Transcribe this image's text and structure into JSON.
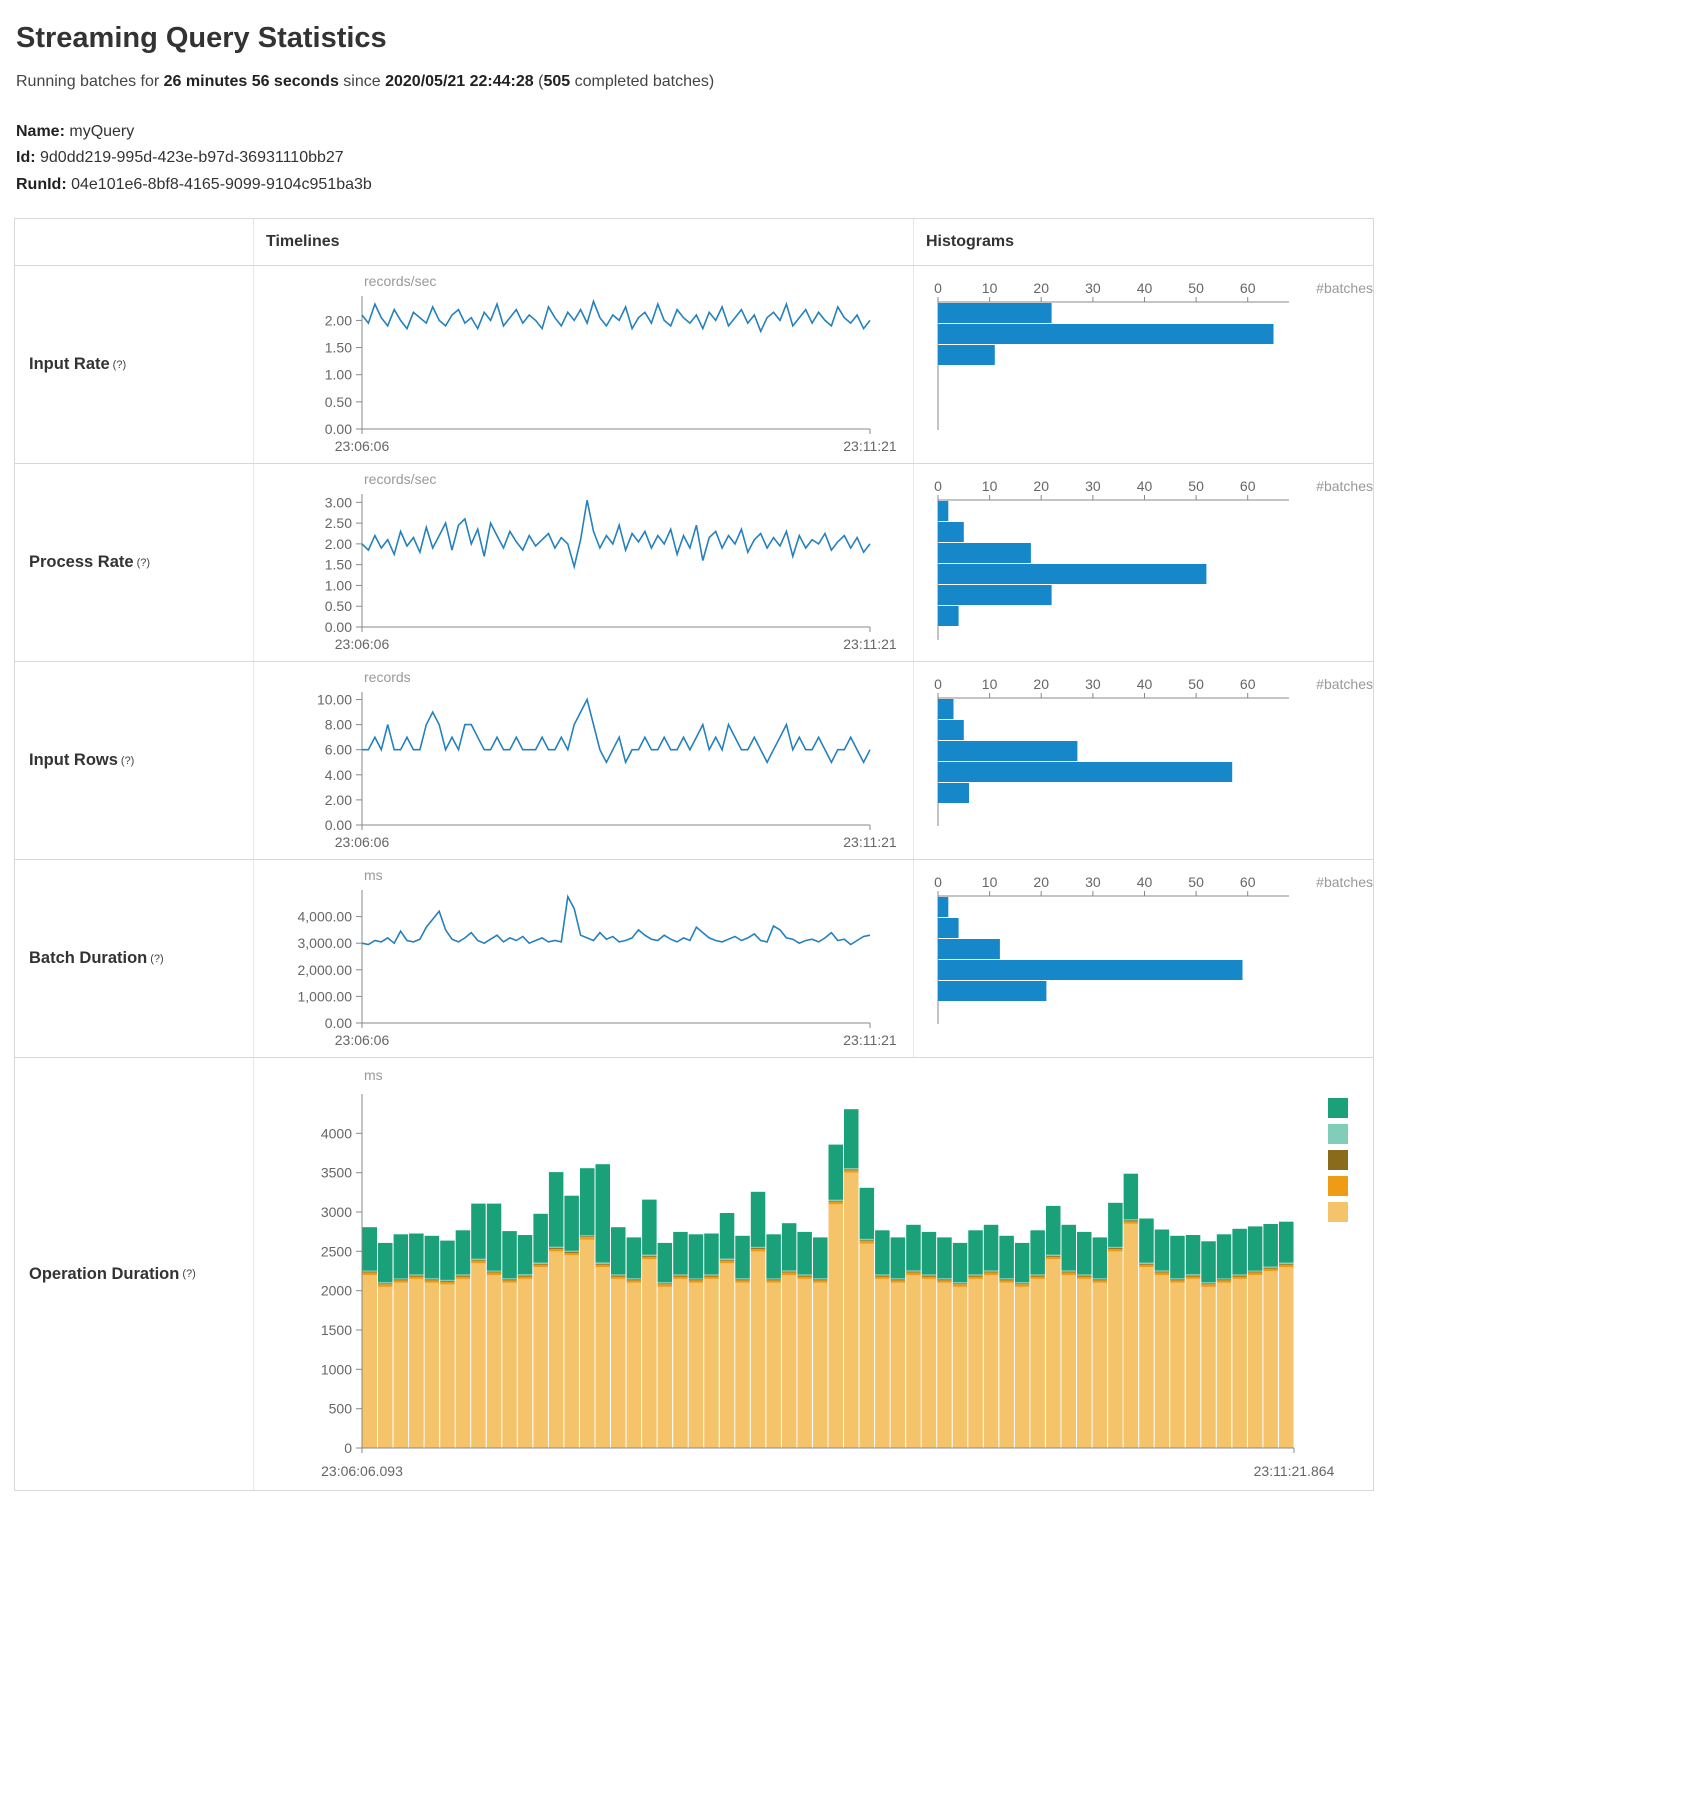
{
  "header": {
    "title": "Streaming Query Statistics",
    "running_prefix": "Running batches for",
    "duration": "26 minutes 56 seconds",
    "since_word": "since",
    "start_time": "2020/05/21 22:44:28",
    "open_paren": "(",
    "completed_count": "505",
    "completed_suffix": " completed batches)"
  },
  "query": {
    "name_label": "Name:",
    "name": "myQuery",
    "id_label": "Id:",
    "id": "9d0dd219-995d-423e-b97d-36931110bb27",
    "runid_label": "RunId:",
    "runid": "04e101e6-8bf8-4165-9099-9104c951ba3b"
  },
  "table": {
    "col_timelines": "Timelines",
    "col_histograms": "Histograms",
    "rows": [
      {
        "label": "Input Rate",
        "help": "(?)"
      },
      {
        "label": "Process Rate",
        "help": "(?)"
      },
      {
        "label": "Input Rows",
        "help": "(?)"
      },
      {
        "label": "Batch Duration",
        "help": "(?)"
      },
      {
        "label": "Operation Duration",
        "help": "(?)"
      }
    ]
  },
  "chart_data": [
    {
      "slot": "input-rate-timeline",
      "type": "line",
      "title": "Input Rate timeline",
      "unit": "records/sec",
      "color": "#2581bd",
      "x_start": "23:06:06",
      "x_end": "23:11:21",
      "ylim": [
        0,
        2.45
      ],
      "ytick_values": [
        0,
        0.5,
        1,
        1.5,
        2
      ],
      "ytick_labels": [
        "0.00",
        "0.50",
        "1.00",
        "1.50",
        "2.00"
      ],
      "values": [
        2.1,
        1.95,
        2.3,
        2.05,
        1.9,
        2.2,
        2.0,
        1.85,
        2.15,
        2.05,
        1.95,
        2.25,
        2.0,
        1.9,
        2.1,
        2.2,
        1.95,
        2.05,
        1.85,
        2.15,
        2.0,
        2.3,
        1.9,
        2.05,
        2.2,
        1.95,
        2.1,
        2.0,
        1.85,
        2.25,
        2.05,
        1.9,
        2.15,
        2.0,
        2.2,
        1.95,
        2.35,
        2.05,
        1.9,
        2.1,
        2.0,
        2.25,
        1.85,
        2.05,
        2.15,
        1.95,
        2.3,
        2.0,
        1.9,
        2.2,
        2.05,
        1.95,
        2.1,
        1.85,
        2.15,
        2.0,
        2.25,
        1.9,
        2.05,
        2.2,
        1.95,
        2.1,
        1.8,
        2.05,
        2.15,
        2.0,
        2.3,
        1.9,
        2.05,
        2.2,
        1.95,
        2.15,
        2.0,
        1.9,
        2.25,
        2.05,
        1.95,
        2.1,
        1.85,
        2.0
      ]
    },
    {
      "slot": "input-rate-histogram",
      "type": "hbar",
      "title": "Input Rate histogram",
      "xlabel": "#batches",
      "color": "#1687c9",
      "xlim": [
        0,
        68
      ],
      "xticks": [
        0,
        10,
        20,
        30,
        40,
        50,
        60
      ],
      "values": [
        22,
        65,
        11
      ]
    },
    {
      "slot": "process-rate-timeline",
      "type": "line",
      "title": "Process Rate timeline",
      "unit": "records/sec",
      "color": "#2581bd",
      "x_start": "23:06:06",
      "x_end": "23:11:21",
      "ylim": [
        0,
        3.2
      ],
      "ytick_values": [
        0,
        0.5,
        1,
        1.5,
        2,
        2.5,
        3
      ],
      "ytick_labels": [
        "0.00",
        "0.50",
        "1.00",
        "1.50",
        "2.00",
        "2.50",
        "3.00"
      ],
      "values": [
        2.0,
        1.85,
        2.2,
        1.9,
        2.1,
        1.75,
        2.3,
        1.95,
        2.15,
        1.8,
        2.4,
        1.9,
        2.2,
        2.5,
        1.85,
        2.45,
        2.6,
        2.0,
        2.35,
        1.7,
        2.5,
        2.2,
        1.9,
        2.3,
        2.05,
        1.85,
        2.2,
        1.95,
        2.1,
        2.25,
        1.9,
        2.15,
        2.0,
        1.45,
        2.1,
        3.05,
        2.3,
        1.9,
        2.2,
        2.0,
        2.45,
        1.85,
        2.25,
        2.05,
        2.3,
        1.9,
        2.2,
        2.0,
        2.35,
        1.75,
        2.2,
        1.9,
        2.45,
        1.6,
        2.15,
        2.3,
        1.9,
        2.2,
        2.0,
        2.35,
        1.8,
        2.1,
        2.25,
        1.9,
        2.15,
        1.95,
        2.3,
        1.7,
        2.2,
        1.9,
        2.1,
        2.0,
        2.25,
        1.85,
        2.05,
        2.2,
        1.9,
        2.15,
        1.8,
        2.0
      ]
    },
    {
      "slot": "process-rate-histogram",
      "type": "hbar",
      "title": "Process Rate histogram",
      "xlabel": "#batches",
      "color": "#1687c9",
      "xlim": [
        0,
        68
      ],
      "xticks": [
        0,
        10,
        20,
        30,
        40,
        50,
        60
      ],
      "values": [
        2,
        5,
        18,
        52,
        22,
        4
      ]
    },
    {
      "slot": "input-rows-timeline",
      "type": "line",
      "title": "Input Rows timeline",
      "unit": "records",
      "color": "#2581bd",
      "x_start": "23:06:06",
      "x_end": "23:11:21",
      "ylim": [
        0,
        10.6
      ],
      "ytick_values": [
        0,
        2,
        4,
        6,
        8,
        10
      ],
      "ytick_labels": [
        "0.00",
        "2.00",
        "4.00",
        "6.00",
        "8.00",
        "10.00"
      ],
      "values": [
        6,
        6,
        7,
        6,
        8,
        6,
        6,
        7,
        6,
        6,
        8,
        9,
        8,
        6,
        7,
        6,
        8,
        8,
        7,
        6,
        6,
        7,
        6,
        6,
        7,
        6,
        6,
        6,
        7,
        6,
        6,
        7,
        6,
        8,
        9,
        10,
        8,
        6,
        5,
        6,
        7,
        5,
        6,
        6,
        7,
        6,
        6,
        7,
        6,
        6,
        7,
        6,
        7,
        8,
        6,
        7,
        6,
        8,
        7,
        6,
        6,
        7,
        6,
        5,
        6,
        7,
        8,
        6,
        7,
        6,
        6,
        7,
        6,
        5,
        6,
        6,
        7,
        6,
        5,
        6
      ]
    },
    {
      "slot": "input-rows-histogram",
      "type": "hbar",
      "title": "Input Rows histogram",
      "xlabel": "#batches",
      "color": "#1687c9",
      "xlim": [
        0,
        68
      ],
      "xticks": [
        0,
        10,
        20,
        30,
        40,
        50,
        60
      ],
      "values": [
        3,
        5,
        27,
        57,
        6
      ]
    },
    {
      "slot": "batch-duration-timeline",
      "type": "line",
      "title": "Batch Duration timeline",
      "unit": "ms",
      "color": "#2581bd",
      "x_start": "23:06:06",
      "x_end": "23:11:21",
      "ylim": [
        0,
        5000
      ],
      "ytick_values": [
        0,
        1000,
        2000,
        3000,
        4000
      ],
      "ytick_labels": [
        "0.00",
        "1,000.00",
        "2,000.00",
        "3,000.00",
        "4,000.00"
      ],
      "values": [
        3000,
        2950,
        3100,
        3050,
        3200,
        3000,
        3450,
        3100,
        3050,
        3150,
        3600,
        3900,
        4200,
        3500,
        3150,
        3050,
        3200,
        3400,
        3100,
        3000,
        3150,
        3300,
        3050,
        3200,
        3100,
        3250,
        3000,
        3100,
        3200,
        3050,
        3100,
        3050,
        4750,
        4300,
        3300,
        3200,
        3100,
        3400,
        3150,
        3250,
        3050,
        3100,
        3200,
        3500,
        3300,
        3150,
        3100,
        3300,
        3150,
        3050,
        3200,
        3100,
        3600,
        3400,
        3200,
        3100,
        3050,
        3150,
        3250,
        3100,
        3200,
        3350,
        3100,
        3050,
        3650,
        3500,
        3200,
        3150,
        3000,
        3100,
        3150,
        3050,
        3200,
        3400,
        3100,
        3150,
        2950,
        3100,
        3250,
        3300
      ]
    },
    {
      "slot": "batch-duration-histogram",
      "type": "hbar",
      "title": "Batch Duration histogram",
      "xlabel": "#batches",
      "color": "#1687c9",
      "xlim": [
        0,
        68
      ],
      "xticks": [
        0,
        10,
        20,
        30,
        40,
        50,
        60
      ],
      "values": [
        2,
        4,
        12,
        59,
        21
      ]
    },
    {
      "slot": "operation-duration",
      "type": "stacked-bar",
      "title": "Operation Duration",
      "unit": "ms",
      "x_start": "23:06:06.093",
      "x_end": "23:11:21.864",
      "ylim": [
        0,
        4500
      ],
      "ytick_values": [
        0,
        500,
        1000,
        1500,
        2000,
        2500,
        3000,
        3500,
        4000
      ],
      "ytick_labels": [
        "0",
        "500",
        "1000",
        "1500",
        "2000",
        "2500",
        "3000",
        "3500",
        "4000"
      ],
      "legend": [
        "#1aa179",
        "#82cdb8",
        "#8a6a1b",
        "#ef9b13",
        "#f5c36a"
      ],
      "series": [
        {
          "color": "#f5c36a",
          "values": [
            2200,
            2050,
            2100,
            2150,
            2100,
            2080,
            2150,
            2350,
            2200,
            2100,
            2150,
            2300,
            2500,
            2450,
            2650,
            2300,
            2150,
            2100,
            2400,
            2050,
            2150,
            2100,
            2150,
            2350,
            2100,
            2500,
            2100,
            2200,
            2150,
            2100,
            3100,
            3500,
            2600,
            2150,
            2100,
            2200,
            2150,
            2100,
            2050,
            2150,
            2200,
            2100,
            2050,
            2150,
            2400,
            2200,
            2150,
            2100,
            2500,
            2850,
            2300,
            2200,
            2100,
            2150,
            2050,
            2100,
            2150,
            2200,
            2250,
            2300
          ]
        },
        {
          "color": "#ef9b13",
          "constant": 30
        },
        {
          "color": "#8a6a1b",
          "constant": 12
        },
        {
          "color": "#82cdb8",
          "constant": 15
        },
        {
          "color": "#1aa179",
          "values": [
            550,
            500,
            560,
            520,
            540,
            500,
            560,
            700,
            850,
            600,
            500,
            620,
            950,
            700,
            850,
            1250,
            600,
            520,
            700,
            500,
            540,
            560,
            520,
            580,
            540,
            700,
            560,
            600,
            540,
            520,
            700,
            750,
            650,
            560,
            520,
            580,
            540,
            520,
            500,
            560,
            580,
            540,
            500,
            560,
            620,
            580,
            540,
            520,
            560,
            580,
            560,
            520,
            540,
            500,
            520,
            560,
            580,
            560,
            540,
            520
          ]
        }
      ]
    }
  ]
}
